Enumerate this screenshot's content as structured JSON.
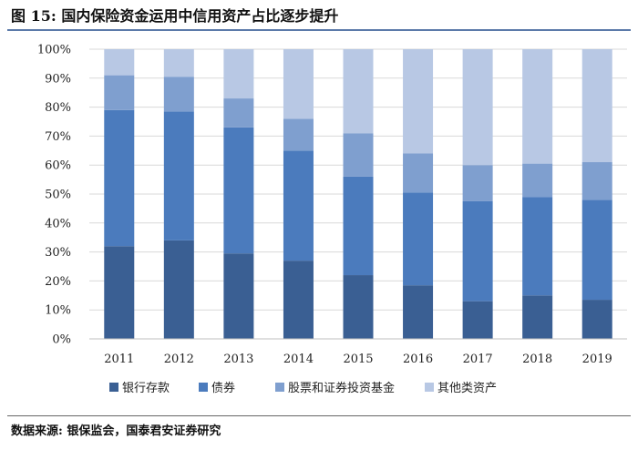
{
  "header": {
    "title": "图 15: 国内保险资金运用中信用资产占比逐步提升"
  },
  "footer": {
    "source": "数据来源: 银保监会，国泰君安证券研究"
  },
  "chart_data": {
    "type": "bar",
    "stacked": true,
    "categories": [
      "2011",
      "2012",
      "2013",
      "2014",
      "2015",
      "2016",
      "2017",
      "2018",
      "2019"
    ],
    "y_ticks": [
      "0%",
      "10%",
      "20%",
      "30%",
      "40%",
      "50%",
      "60%",
      "70%",
      "80%",
      "90%",
      "100%"
    ],
    "ylim": [
      0,
      100
    ],
    "grid": true,
    "legend_position": "bottom",
    "series": [
      {
        "name": "银行存款",
        "color": "#3a5f93",
        "values": [
          32,
          34,
          29.5,
          27,
          22,
          18.5,
          13,
          15,
          13.5
        ]
      },
      {
        "name": "债券",
        "color": "#4b7bbd",
        "values": [
          47,
          44.5,
          43.5,
          38,
          34,
          32,
          34.5,
          34,
          34.5
        ]
      },
      {
        "name": "股票和证券投资基金",
        "color": "#7f9fcf",
        "values": [
          12,
          12,
          10,
          11,
          15,
          13.5,
          12.5,
          11.5,
          13
        ]
      },
      {
        "name": "其他类资产",
        "color": "#b8c8e4",
        "values": [
          9,
          9.5,
          17,
          24,
          29,
          36,
          40,
          39.5,
          39
        ]
      }
    ]
  }
}
